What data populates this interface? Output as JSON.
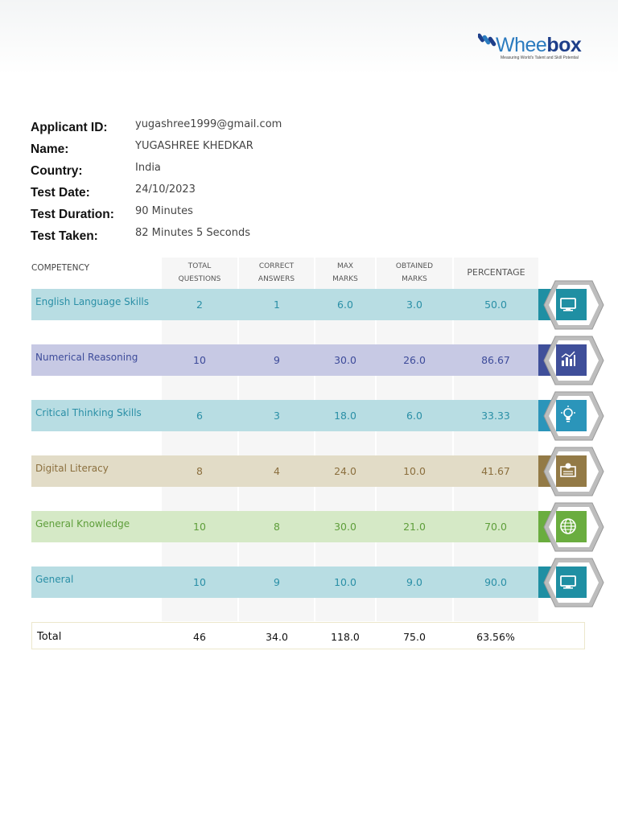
{
  "brand": {
    "name_part1": "Whee",
    "name_part2": "box",
    "tagline": "Measuring World's Talent and Skill Potential",
    "colors": {
      "light": "#2b7bbf",
      "dark": "#1e3f8a"
    }
  },
  "applicant": {
    "fields": [
      {
        "label": "Applicant ID:",
        "value": "yugashree1999@gmail.com"
      },
      {
        "label": "Name:",
        "value": "YUGASHREE KHEDKAR"
      },
      {
        "label": "Country:",
        "value": "India"
      },
      {
        "label": "Test Date:",
        "value": "24/10/2023"
      },
      {
        "label": "Test Duration:",
        "value": "90 Minutes"
      },
      {
        "label": "Test Taken:",
        "value": "82 Minutes 5 Seconds"
      }
    ]
  },
  "table": {
    "headers": {
      "competency": "COMPETENCY",
      "total_q_1": "TOTAL",
      "total_q_2": "QUESTIONS",
      "correct_1": "CORRECT",
      "correct_2": "ANSWERS",
      "max_1": "MAX",
      "max_2": "MARKS",
      "obtained_1": "OBTAINED",
      "obtained_2": "MARKS",
      "percentage": "PERCENTAGE"
    },
    "rows": [
      {
        "name": "English Language Skills",
        "total_questions": "2",
        "correct": "1",
        "max": "6.0",
        "obtained": "3.0",
        "percentage": "50.0",
        "icon": "monitor-icon",
        "bar": "#b8dde3",
        "text": "#2a8fa6",
        "badge": "#1f8fa3"
      },
      {
        "name": "Numerical Reasoning",
        "total_questions": "10",
        "correct": "9",
        "max": "30.0",
        "obtained": "26.0",
        "percentage": "86.67",
        "icon": "bar-chart-icon",
        "bar": "#c7c9e4",
        "text": "#3d4b9a",
        "badge": "#3f4f9a"
      },
      {
        "name": "Critical Thinking Skills",
        "total_questions": "6",
        "correct": "3",
        "max": "18.0",
        "obtained": "6.0",
        "percentage": "33.33",
        "icon": "lightbulb-icon",
        "bar": "#b8dde3",
        "text": "#2a8fa6",
        "badge": "#2b95ba"
      },
      {
        "name": "Digital Literacy",
        "total_questions": "8",
        "correct": "4",
        "max": "24.0",
        "obtained": "10.0",
        "percentage": "41.67",
        "icon": "certificate-icon",
        "bar": "#e2dcc7",
        "text": "#8b6f3e",
        "badge": "#937a46"
      },
      {
        "name": "General Knowledge",
        "total_questions": "10",
        "correct": "8",
        "max": "30.0",
        "obtained": "21.0",
        "percentage": "70.0",
        "icon": "globe-icon",
        "bar": "#d5e9c6",
        "text": "#5e9e3a",
        "badge": "#6aad3f"
      },
      {
        "name": "General",
        "total_questions": "10",
        "correct": "9",
        "max": "10.0",
        "obtained": "9.0",
        "percentage": "90.0",
        "icon": "monitor-icon",
        "bar": "#b8dde3",
        "text": "#2a8fa6",
        "badge": "#1f8fa3"
      }
    ],
    "total": {
      "label": "Total",
      "total_questions": "46",
      "correct": "34.0",
      "max": "118.0",
      "obtained": "75.0",
      "percentage": "63.56%"
    }
  }
}
